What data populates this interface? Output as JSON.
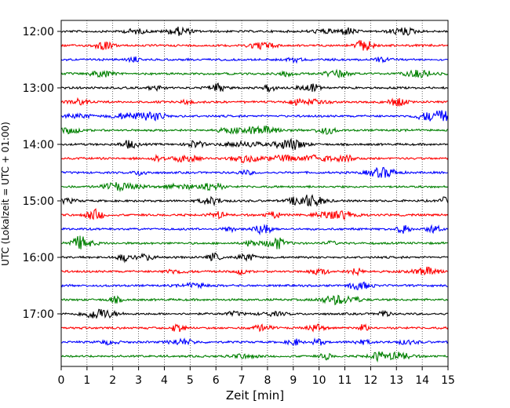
{
  "chart_data": {
    "type": "line",
    "xlabel": "Zeit  [min]",
    "ylabel": "UTC (Lokalzeit = UTC + 01:00)",
    "xlim": [
      0,
      15
    ],
    "x_ticks": [
      "0",
      "1",
      "2",
      "3",
      "4",
      "5",
      "6",
      "7",
      "8",
      "9",
      "10",
      "11",
      "12",
      "13",
      "14",
      "15"
    ],
    "y_ticks": [
      "12:00",
      "13:00",
      "14:00",
      "15:00",
      "16:00",
      "17:00"
    ],
    "trace_interval_min": 15,
    "trace_count": 24,
    "trace_colors": [
      "#000000",
      "#ff0000",
      "#0000ff",
      "#008000"
    ],
    "grid": "vertical dotted at each minute"
  }
}
